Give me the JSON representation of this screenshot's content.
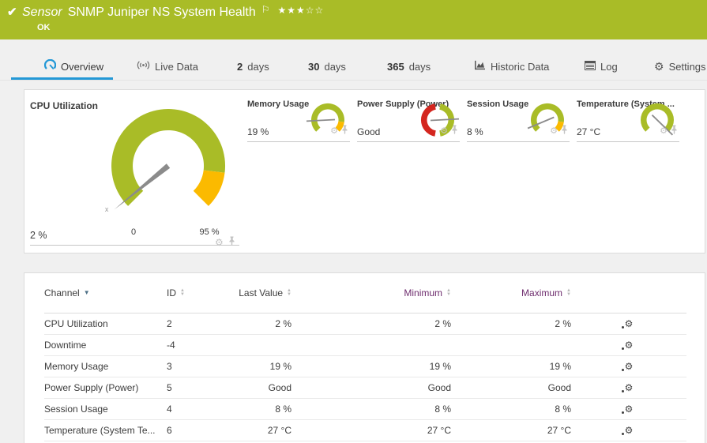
{
  "colors": {
    "brand_green": "#a9bc27",
    "warn_yellow": "#fbba00",
    "error_red": "#d4261f",
    "accent_blue": "#2398d6",
    "needle_gray": "#8b8b8b"
  },
  "header": {
    "check_icon": "check-icon",
    "sensor_prefix": "Sensor",
    "title": "SNMP Juniper NS System Health",
    "flag_icon": "flag-icon",
    "rating_filled": 3,
    "rating_total": 5,
    "status": "OK"
  },
  "tabs": [
    {
      "id": "overview",
      "icon": "gauge-icon",
      "label": "Overview",
      "active": true
    },
    {
      "id": "live-data",
      "icon": "broadcast-icon",
      "label": "Live Data",
      "active": false
    },
    {
      "id": "2-days",
      "num": "2",
      "label": "days",
      "active": false
    },
    {
      "id": "30-days",
      "num": "30",
      "label": "days",
      "active": false
    },
    {
      "id": "365-days",
      "num": "365",
      "label": "days",
      "active": false
    },
    {
      "id": "historic-data",
      "icon": "historic-icon",
      "label": "Historic Data",
      "active": false
    },
    {
      "id": "log",
      "icon": "log-icon",
      "label": "Log",
      "active": false
    },
    {
      "id": "settings",
      "icon": "gear-icon",
      "label": "Settings",
      "active": false
    }
  ],
  "gauges": {
    "cpu": {
      "title": "CPU Utilization",
      "value": "2 %",
      "scale_min_label": "0",
      "scale_max_label": "95 %",
      "needle_tip_label": "x",
      "needle_deg": 141,
      "segments": [
        {
          "from": 135,
          "to": 367,
          "color": "brand_green"
        },
        {
          "from": 367,
          "to": 405,
          "color": "warn_yellow"
        }
      ]
    },
    "small": [
      {
        "title": "Memory Usage",
        "value": "19 %",
        "needle_deg": 177,
        "segments": [
          {
            "from": 135,
            "to": 367,
            "color": "brand_green"
          },
          {
            "from": 367,
            "to": 405,
            "color": "warn_yellow"
          }
        ]
      },
      {
        "title": "Power Supply (Power)",
        "value": "Good",
        "needle_deg": 357,
        "segments": [
          {
            "from": 100,
            "to": 260,
            "color": "error_red"
          },
          {
            "from": 280,
            "to": 440,
            "color": "brand_green"
          }
        ]
      },
      {
        "title": "Session Usage",
        "value": "8 %",
        "needle_deg": 157,
        "segments": [
          {
            "from": 135,
            "to": 367,
            "color": "brand_green"
          },
          {
            "from": 367,
            "to": 405,
            "color": "warn_yellow"
          }
        ]
      },
      {
        "title": "Temperature (System ...",
        "value": "27 °C",
        "needle_deg": 44,
        "segments": [
          {
            "from": 135,
            "to": 405,
            "color": "brand_green"
          }
        ]
      }
    ]
  },
  "table": {
    "columns": [
      {
        "label": "Channel",
        "sort": "sorted-desc",
        "purple": false
      },
      {
        "label": "ID",
        "sort": "sortable",
        "purple": false
      },
      {
        "label": "Last Value",
        "sort": "sortable",
        "purple": false
      },
      {
        "label": "Minimum",
        "sort": "sortable",
        "purple": true
      },
      {
        "label": "Maximum",
        "sort": "sortable",
        "purple": true
      },
      {
        "label": "",
        "sort": "none",
        "purple": false
      }
    ],
    "rows": [
      {
        "channel": "CPU Utilization",
        "id": "2",
        "last": "2 %",
        "min": "2 %",
        "max": "2 %"
      },
      {
        "channel": "Downtime",
        "id": "-4",
        "last": "",
        "min": "",
        "max": ""
      },
      {
        "channel": "Memory Usage",
        "id": "3",
        "last": "19 %",
        "min": "19 %",
        "max": "19 %"
      },
      {
        "channel": "Power Supply (Power)",
        "id": "5",
        "last": "Good",
        "min": "Good",
        "max": "Good"
      },
      {
        "channel": "Session Usage",
        "id": "4",
        "last": "8 %",
        "min": "8 %",
        "max": "8 %"
      },
      {
        "channel": "Temperature (System Te...",
        "id": "6",
        "last": "27 °C",
        "min": "27 °C",
        "max": "27 °C"
      }
    ]
  }
}
